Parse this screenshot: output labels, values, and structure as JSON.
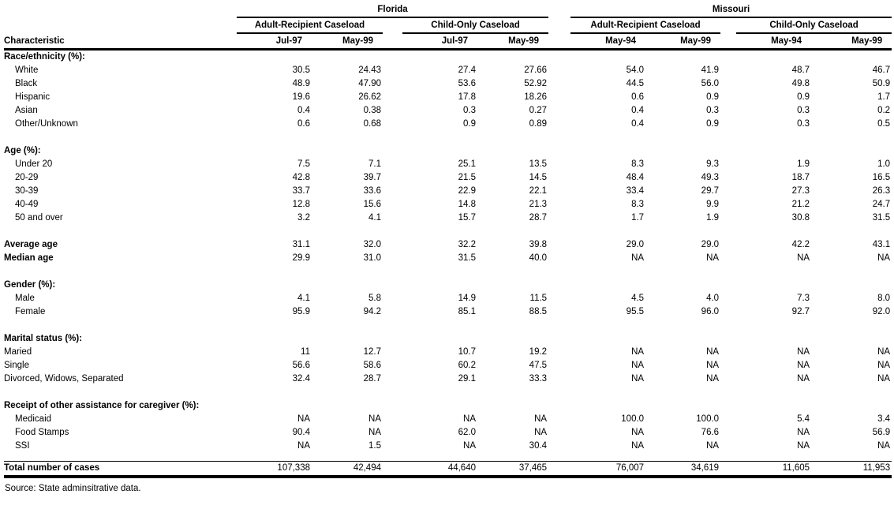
{
  "page": {
    "source_note": "Source: State adminsitrative data."
  },
  "table": {
    "characteristic_header": "Characteristic",
    "state_groups": [
      {
        "label": "Florida",
        "caseloads": [
          {
            "label": "Adult-Recipient Caseload",
            "periods": [
              "Jul-97",
              "May-99"
            ]
          },
          {
            "label": "Child-Only Caseload",
            "periods": [
              "Jul-97",
              "May-99"
            ]
          }
        ]
      },
      {
        "label": "Missouri",
        "caseloads": [
          {
            "label": "Adult-Recipient Caseload",
            "periods": [
              "May-94",
              "May-99"
            ]
          },
          {
            "label": "Child-Only Caseload",
            "periods": [
              "May-94",
              "May-99"
            ]
          }
        ]
      }
    ],
    "rows": [
      {
        "type": "section",
        "label": "Race/ethnicity (%):"
      },
      {
        "type": "item",
        "label": "White",
        "values": [
          "30.5",
          "24.43",
          "27.4",
          "27.66",
          "54.0",
          "41.9",
          "48.7",
          "46.7"
        ]
      },
      {
        "type": "item",
        "label": "Black",
        "values": [
          "48.9",
          "47.90",
          "53.6",
          "52.92",
          "44.5",
          "56.0",
          "49.8",
          "50.9"
        ]
      },
      {
        "type": "item",
        "label": "Hispanic",
        "values": [
          "19.6",
          "26.62",
          "17.8",
          "18.26",
          "0.6",
          "0.9",
          "0.9",
          "1.7"
        ]
      },
      {
        "type": "item",
        "label": "Asian",
        "values": [
          "0.4",
          "0.38",
          "0.3",
          "0.27",
          "0.4",
          "0.3",
          "0.3",
          "0.2"
        ]
      },
      {
        "type": "item",
        "label": "Other/Unknown",
        "values": [
          "0.6",
          "0.68",
          "0.9",
          "0.89",
          "0.4",
          "0.9",
          "0.3",
          "0.5"
        ]
      },
      {
        "type": "spacer"
      },
      {
        "type": "section",
        "label": "Age (%):"
      },
      {
        "type": "item",
        "label": "Under 20",
        "values": [
          "7.5",
          "7.1",
          "25.1",
          "13.5",
          "8.3",
          "9.3",
          "1.9",
          "1.0"
        ]
      },
      {
        "type": "item",
        "label": "20-29",
        "values": [
          "42.8",
          "39.7",
          "21.5",
          "14.5",
          "48.4",
          "49.3",
          "18.7",
          "16.5"
        ]
      },
      {
        "type": "item",
        "label": "30-39",
        "values": [
          "33.7",
          "33.6",
          "22.9",
          "22.1",
          "33.4",
          "29.7",
          "27.3",
          "26.3"
        ]
      },
      {
        "type": "item",
        "label": "40-49",
        "values": [
          "12.8",
          "15.6",
          "14.8",
          "21.3",
          "8.3",
          "9.9",
          "21.2",
          "24.7"
        ]
      },
      {
        "type": "item",
        "label": "50 and over",
        "values": [
          "3.2",
          "4.1",
          "15.7",
          "28.7",
          "1.7",
          "1.9",
          "30.8",
          "31.5"
        ]
      },
      {
        "type": "spacer"
      },
      {
        "type": "bold_item",
        "label": "Average age",
        "values": [
          "31.1",
          "32.0",
          "32.2",
          "39.8",
          "29.0",
          "29.0",
          "42.2",
          "43.1"
        ]
      },
      {
        "type": "bold_item",
        "label": "Median age",
        "values": [
          "29.9",
          "31.0",
          "31.5",
          "40.0",
          "NA",
          "NA",
          "NA",
          "NA"
        ]
      },
      {
        "type": "spacer"
      },
      {
        "type": "section",
        "label": "Gender (%):"
      },
      {
        "type": "item",
        "label": "Male",
        "values": [
          "4.1",
          "5.8",
          "14.9",
          "11.5",
          "4.5",
          "4.0",
          "7.3",
          "8.0"
        ]
      },
      {
        "type": "item",
        "label": "Female",
        "values": [
          "95.9",
          "94.2",
          "85.1",
          "88.5",
          "95.5",
          "96.0",
          "92.7",
          "92.0"
        ]
      },
      {
        "type": "spacer"
      },
      {
        "type": "section",
        "label": "Marital status (%):"
      },
      {
        "type": "flush_item",
        "label": "Maried",
        "values": [
          "11",
          "12.7",
          "10.7",
          "19.2",
          "NA",
          "NA",
          "NA",
          "NA"
        ]
      },
      {
        "type": "flush_item",
        "label": "Single",
        "values": [
          "56.6",
          "58.6",
          "60.2",
          "47.5",
          "NA",
          "NA",
          "NA",
          "NA"
        ]
      },
      {
        "type": "flush_item",
        "label": "Divorced, Widows, Separated",
        "values": [
          "32.4",
          "28.7",
          "29.1",
          "33.3",
          "NA",
          "NA",
          "NA",
          "NA"
        ]
      },
      {
        "type": "spacer"
      },
      {
        "type": "section",
        "label": "Receipt of other assistance for caregiver (%):"
      },
      {
        "type": "item",
        "label": "Medicaid",
        "values": [
          "NA",
          "NA",
          "NA",
          "NA",
          "100.0",
          "100.0",
          "5.4",
          "3.4"
        ]
      },
      {
        "type": "item",
        "label": "Food Stamps",
        "values": [
          "90.4",
          "NA",
          "62.0",
          "NA",
          "NA",
          "76.6",
          "NA",
          "56.9"
        ]
      },
      {
        "type": "item",
        "label": "SSI",
        "values": [
          "NA",
          "1.5",
          "NA",
          "30.4",
          "NA",
          "NA",
          "NA",
          "NA"
        ]
      }
    ],
    "total_row": {
      "label": "Total number of cases",
      "values": [
        "107,338",
        "42,494",
        "44,640",
        "37,465",
        "76,007",
        "34,619",
        "11,605",
        "11,953"
      ]
    }
  }
}
